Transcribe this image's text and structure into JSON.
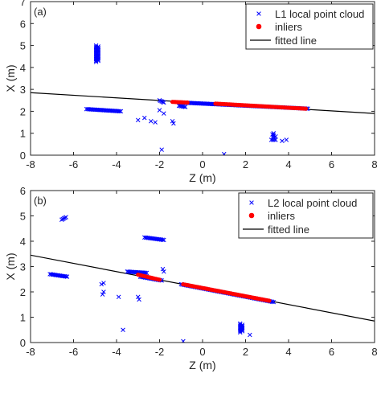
{
  "chart_data": [
    {
      "type": "scatter",
      "panel_label": "(a)",
      "xlabel": "Z (m)",
      "ylabel": "X (m)",
      "xlim": [
        -8,
        8
      ],
      "ylim": [
        0,
        7
      ],
      "xticks": [
        -8,
        -6,
        -4,
        -2,
        0,
        2,
        4,
        6,
        8
      ],
      "yticks": [
        0,
        1,
        2,
        3,
        4,
        5,
        6,
        7
      ],
      "grid": false,
      "legend_position": "top-right",
      "fitted_line": {
        "name": "fitted line",
        "x": [
          -8,
          8
        ],
        "y": [
          2.85,
          1.9
        ]
      },
      "series": [
        {
          "name": "L1 local point cloud",
          "marker": "x",
          "color": "#0000ff",
          "segments": [
            {
              "x": [
                -4.95,
                -4.95
              ],
              "y": [
                4.25,
                5.0
              ]
            },
            {
              "x": [
                -4.85,
                -4.85
              ],
              "y": [
                4.3,
                4.95
              ]
            },
            {
              "x": [
                -5.4,
                -3.8
              ],
              "y": [
                2.1,
                2.0
              ]
            },
            {
              "x": [
                -2.0,
                -1.8
              ],
              "y": [
                2.5,
                2.4
              ]
            },
            {
              "x": [
                -1.1,
                -0.8
              ],
              "y": [
                2.25,
                2.2
              ]
            },
            {
              "x": [
                -1.0,
                4.9
              ],
              "y": [
                2.4,
                2.12
              ]
            },
            {
              "x": [
                3.3,
                3.3
              ],
              "y": [
                0.8,
                1.0
              ]
            },
            {
              "x": [
                3.2,
                3.4
              ],
              "y": [
                0.7,
                0.7
              ]
            }
          ],
          "points": [
            {
              "x": -3.0,
              "y": 1.6
            },
            {
              "x": -2.7,
              "y": 1.7
            },
            {
              "x": -2.4,
              "y": 1.55
            },
            {
              "x": -2.2,
              "y": 1.5
            },
            {
              "x": -2.0,
              "y": 2.05
            },
            {
              "x": -1.8,
              "y": 1.9
            },
            {
              "x": -1.4,
              "y": 1.55
            },
            {
              "x": -1.35,
              "y": 1.45
            },
            {
              "x": -1.9,
              "y": 0.25
            },
            {
              "x": 1.0,
              "y": 0.05
            },
            {
              "x": 3.7,
              "y": 0.65
            },
            {
              "x": 3.9,
              "y": 0.7
            },
            {
              "x": 3.25,
              "y": 0.95
            },
            {
              "x": 3.4,
              "y": 0.85
            }
          ]
        },
        {
          "name": "inliers",
          "marker": "dot",
          "color": "#ff0000",
          "segments": [
            {
              "x": -1.4,
              "y": 2.43,
              "x2": -0.7,
              "y2": 2.4
            },
            {
              "x": 0.6,
              "y": 2.35,
              "x2": 4.8,
              "y2": 2.12
            }
          ]
        }
      ]
    },
    {
      "type": "scatter",
      "panel_label": "(b)",
      "xlabel": "Z (m)",
      "ylabel": "X (m)",
      "xlim": [
        -8,
        8
      ],
      "ylim": [
        0,
        6
      ],
      "xticks": [
        -8,
        -6,
        -4,
        -2,
        0,
        2,
        4,
        6,
        8
      ],
      "yticks": [
        0,
        1,
        2,
        3,
        4,
        5,
        6
      ],
      "grid": false,
      "legend_position": "top-right",
      "fitted_line": {
        "name": "fitted line",
        "x": [
          -8,
          8
        ],
        "y": [
          3.45,
          0.85
        ]
      },
      "series": [
        {
          "name": "L2 local point cloud",
          "marker": "x",
          "color": "#0000ff",
          "segments": [
            {
              "x": [
                -6.55,
                -6.35
              ],
              "y": [
                4.85,
                4.95
              ]
            },
            {
              "x": [
                -7.1,
                -6.3
              ],
              "y": [
                2.7,
                2.6
              ]
            },
            {
              "x": [
                -2.7,
                -1.8
              ],
              "y": [
                4.15,
                4.05
              ]
            },
            {
              "x": [
                -3.5,
                -2.6
              ],
              "y": [
                2.8,
                2.75
              ]
            },
            {
              "x": [
                -2.9,
                -1.9
              ],
              "y": [
                2.6,
                2.45
              ]
            },
            {
              "x": [
                -1.0,
                3.3
              ],
              "y": [
                2.3,
                1.6
              ]
            },
            {
              "x": [
                1.75,
                1.75
              ],
              "y": [
                0.4,
                0.75
              ]
            },
            {
              "x": [
                1.85,
                1.85
              ],
              "y": [
                0.45,
                0.7
              ]
            }
          ],
          "points": [
            {
              "x": -4.7,
              "y": 2.3
            },
            {
              "x": -4.6,
              "y": 2.35
            },
            {
              "x": -4.65,
              "y": 1.9
            },
            {
              "x": -4.6,
              "y": 2.0
            },
            {
              "x": -3.9,
              "y": 1.8
            },
            {
              "x": -3.7,
              "y": 0.5
            },
            {
              "x": -3.0,
              "y": 1.8
            },
            {
              "x": -2.95,
              "y": 1.7
            },
            {
              "x": -1.85,
              "y": 2.9
            },
            {
              "x": -1.8,
              "y": 2.8
            },
            {
              "x": -0.9,
              "y": 0.05
            },
            {
              "x": 2.2,
              "y": 0.3
            }
          ]
        },
        {
          "name": "inliers",
          "marker": "dot",
          "color": "#ff0000",
          "segments": [
            {
              "x": -3.0,
              "y": 2.68,
              "x2": -2.0,
              "y2": 2.48
            },
            {
              "x": -0.9,
              "y": 2.3,
              "x2": 3.1,
              "y2": 1.65
            }
          ]
        }
      ]
    }
  ]
}
